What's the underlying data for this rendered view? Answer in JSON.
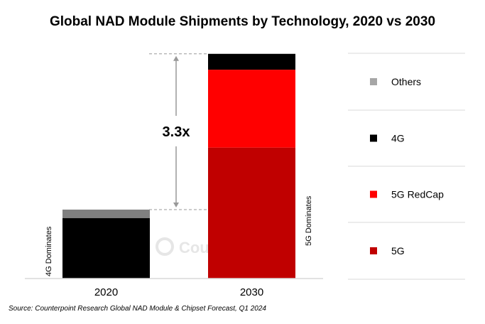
{
  "chart_data": {
    "type": "bar",
    "stacked": true,
    "title": "Global NAD Module Shipments by Technology, 2020 vs 2030",
    "categories": [
      "2020",
      "2030"
    ],
    "units": "relative (2020 total = 100)",
    "series": [
      {
        "name": "5G",
        "color": "#C00000",
        "values": [
          0,
          190
        ]
      },
      {
        "name": "5G RedCap",
        "color": "#FF0000",
        "values": [
          0,
          113
        ]
      },
      {
        "name": "4G",
        "color": "#000000",
        "values": [
          87.6,
          23
        ]
      },
      {
        "name": "Others",
        "color": "#808080",
        "values": [
          12.4,
          0
        ]
      }
    ],
    "legend_order": [
      "Others",
      "4G",
      "5G RedCap",
      "5G"
    ],
    "legend_position": "right",
    "growth_annotation": "3.3x",
    "bar_annotations": [
      "4G Dominates",
      "5G Dominates"
    ],
    "watermark": "Counterpoint",
    "y_axis_visible": false,
    "grid": false
  },
  "source": "Source: Counterpoint Research Global NAD Module & Chipset Forecast, Q1 2024"
}
